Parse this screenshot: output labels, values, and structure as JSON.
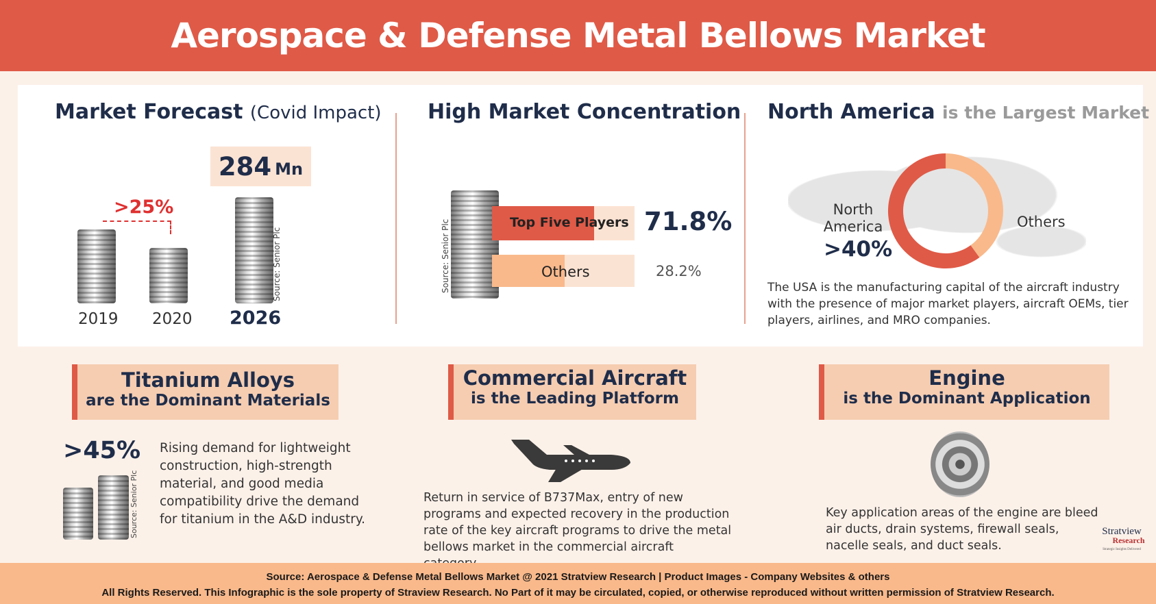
{
  "title": "Aerospace & Defense Metal Bellows Market",
  "forecast": {
    "title": "Market Forecast",
    "subtitle": "(Covid Impact)",
    "value": "284",
    "unit": "Mn",
    "decline": ">25%",
    "years": [
      "2019",
      "2020",
      "2026"
    ],
    "source": "Source: Senior Plc"
  },
  "concentration": {
    "title": "High Market Concentration",
    "source": "Source: Senior Plc",
    "bars": [
      {
        "label": "Top Five Players",
        "value": "71.8%",
        "pct": 71.8,
        "color": "#df5a47"
      },
      {
        "label": "Others",
        "value": "28.2%",
        "pct": 28.2,
        "color": "#f9b98b"
      }
    ]
  },
  "region": {
    "title": "North America",
    "title_rest": "is the Largest Market",
    "na_label": "North America",
    "na_value": ">40%",
    "others_label": "Others",
    "na_share": 60,
    "colors": {
      "na": "#df5a47",
      "others": "#f9b98b"
    },
    "text": "The USA is the manufacturing capital of the aircraft industry with the presence of major market players, aircraft OEMs, tier players, airlines, and MRO companies."
  },
  "materials": {
    "title": "Titanium Alloys",
    "subtitle": "are the Dominant Materials",
    "value": ">45%",
    "source": "Source: Senior Plc",
    "text": "Rising demand for lightweight construction, high-strength material, and good media compatibility drive the demand for titanium in the A&D industry."
  },
  "platform": {
    "title": "Commercial Aircraft",
    "subtitle": "is the Leading Platform",
    "text": "Return in service of B737Max, entry of new programs and expected recovery in the production rate of the key aircraft programs  to drive the metal bellows market in the commercial aircraft category."
  },
  "application": {
    "title": "Engine",
    "subtitle": "is the Dominant Application",
    "text": "Key application areas of the engine are bleed air ducts, drain systems, firewall seals, nacelle seals, and duct seals."
  },
  "logo": {
    "name": "Stratview",
    "sub": "Research",
    "tagline": "Strategic Insights Delivered"
  },
  "footer": {
    "line1": "Source: Aerospace & Defense Metal Bellows Market @ 2021 Stratview Research | Product Images  - Company Websites & others",
    "line2": "All Rights Reserved. This Infographic is the sole property of Straview Research. No Part of it may be circulated, copied, or otherwise reproduced without written permission of Stratview Research."
  }
}
